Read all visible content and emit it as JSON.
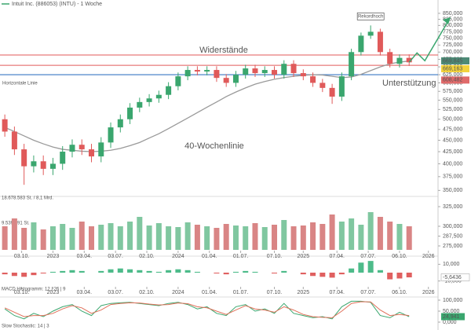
{
  "chart_data": [
    {
      "type": "candlestick",
      "title": "Intuit Inc. (886053) (INTU) - 1 Woche",
      "x": [
        2,
        6,
        10,
        14,
        18,
        22,
        26,
        30,
        34,
        38,
        42,
        46,
        50,
        54,
        58,
        62,
        66,
        70,
        74,
        78,
        82,
        86,
        90,
        94,
        98,
        102,
        106,
        110,
        114,
        118,
        122,
        126,
        130,
        134,
        138,
        142,
        146,
        150,
        154,
        158,
        162,
        166,
        170
      ],
      "open": [
        500,
        470,
        430,
        395,
        405,
        390,
        400,
        425,
        440,
        430,
        415,
        445,
        480,
        500,
        530,
        545,
        555,
        565,
        590,
        620,
        640,
        635,
        640,
        615,
        600,
        625,
        645,
        630,
        640,
        625,
        660,
        630,
        620,
        600,
        585,
        560,
        620,
        700,
        760,
        775,
        700,
        660,
        680
      ],
      "high": [
        512,
        482,
        442,
        417,
        417,
        412,
        437,
        452,
        452,
        442,
        457,
        492,
        512,
        542,
        557,
        567,
        577,
        602,
        632,
        652,
        652,
        652,
        652,
        627,
        637,
        657,
        657,
        652,
        652,
        672,
        672,
        642,
        632,
        612,
        597,
        632,
        712,
        772,
        800,
        787,
        712,
        692,
        692
      ],
      "low": [
        458,
        418,
        360,
        383,
        378,
        378,
        388,
        413,
        418,
        403,
        403,
        433,
        468,
        488,
        518,
        533,
        543,
        553,
        578,
        608,
        623,
        623,
        603,
        588,
        588,
        613,
        618,
        618,
        613,
        613,
        618,
        608,
        588,
        573,
        540,
        548,
        608,
        688,
        748,
        688,
        648,
        648,
        653
      ],
      "close": [
        470,
        430,
        395,
        405,
        390,
        400,
        425,
        440,
        430,
        415,
        445,
        480,
        500,
        530,
        545,
        555,
        565,
        590,
        620,
        640,
        635,
        640,
        615,
        600,
        625,
        645,
        630,
        640,
        625,
        660,
        630,
        620,
        600,
        585,
        560,
        620,
        700,
        760,
        775,
        700,
        660,
        680,
        665
      ],
      "up_color": "#3aa66e",
      "down_color": "#e05a5a",
      "xlim": [
        0,
        182
      ],
      "ylim": [
        345,
        860
      ],
      "log_scale": true,
      "yticks": [
        {
          "value": 850,
          "label": "850,000"
        },
        {
          "value": 825,
          "label": "825,000"
        },
        {
          "value": 800,
          "label": "800,000"
        },
        {
          "value": 775,
          "label": "775,000"
        },
        {
          "value": 750,
          "label": "750,000"
        },
        {
          "value": 725,
          "label": "725,000"
        },
        {
          "value": 700,
          "label": "700,000"
        },
        {
          "value": 675,
          "label": "675,000"
        },
        {
          "value": 650,
          "label": "650,000"
        },
        {
          "value": 625,
          "label": "625,000"
        },
        {
          "value": 600,
          "label": "600,000"
        },
        {
          "value": 575,
          "label": "575,000"
        },
        {
          "value": 550,
          "label": "550,000"
        },
        {
          "value": 525,
          "label": "525,000"
        },
        {
          "value": 500,
          "label": "500,000"
        },
        {
          "value": 475,
          "label": "475,000"
        },
        {
          "value": 450,
          "label": "450,000"
        },
        {
          "value": 425,
          "label": "425,000"
        },
        {
          "value": 400,
          "label": "400,000"
        },
        {
          "value": 375,
          "label": "375,000"
        },
        {
          "value": 350,
          "label": "350,000"
        }
      ],
      "moving_average": {
        "name": "40-Wochenlinie",
        "color": "#9a9a9a",
        "values": [
          480,
          470,
          460,
          450,
          442,
          435,
          430,
          428,
          426,
          425,
          426,
          428,
          432,
          438,
          445,
          455,
          465,
          477,
          490,
          503,
          517,
          531,
          545,
          560,
          573,
          585,
          596,
          604,
          611,
          616,
          620,
          623,
          625,
          624,
          620,
          616,
          618,
          626,
          638,
          650,
          660,
          666,
          669
        ]
      },
      "resistance": {
        "label": "Widerstände",
        "values": [
          690,
          655
        ],
        "color": "#e05a5a"
      },
      "support": {
        "label": "Unterstützung",
        "value": 625,
        "color": "#3a78c4"
      },
      "horizontal_line_label": "Horizontale Linie",
      "annotation": {
        "label": "Rekordhoch",
        "x": 154,
        "y": 800
      },
      "price_labels": [
        {
          "value": 669.845,
          "label": "669,845",
          "color": "#4d8a76"
        },
        {
          "value": 669.163,
          "label": "669,163",
          "color": "#f2d23c"
        },
        {
          "value": 608.482,
          "label": "608,482",
          "color": "#e06a6a"
        }
      ]
    },
    {
      "type": "bar",
      "title": "18.678.583 St. / 8,1 Mrd.",
      "subtitle": "9.539.291 St.",
      "x": [
        2,
        6,
        10,
        14,
        18,
        22,
        26,
        30,
        34,
        38,
        42,
        46,
        50,
        54,
        58,
        62,
        66,
        70,
        74,
        78,
        82,
        86,
        90,
        94,
        98,
        102,
        106,
        110,
        114,
        118,
        122,
        126,
        130,
        134,
        138,
        142,
        146,
        150,
        154,
        158,
        162,
        166,
        170
      ],
      "values": [
        300,
        310,
        298,
        305,
        296,
        300,
        303,
        298,
        306,
        300,
        302,
        304,
        300,
        306,
        312,
        301,
        304,
        300,
        299,
        305,
        302,
        300,
        298,
        303,
        301,
        300,
        304,
        299,
        302,
        308,
        300,
        301,
        305,
        303,
        315,
        306,
        310,
        302,
        318,
        312,
        306,
        303,
        300
      ],
      "up_color": "#80c7a0",
      "down_color": "#d98585",
      "xlim": [
        0,
        182
      ],
      "ylim": [
        270,
        330
      ],
      "yticks": [
        {
          "value": 325,
          "label": "325,000"
        },
        {
          "value": 300,
          "label": "300,000"
        },
        {
          "value": 287.5,
          "label": "287,500"
        },
        {
          "value": 275,
          "label": "275,000"
        }
      ],
      "xticks": [
        {
          "value": 9,
          "label": "03.10."
        },
        {
          "value": 22,
          "label": "2023"
        },
        {
          "value": 35,
          "label": "03.04."
        },
        {
          "value": 48,
          "label": "03.07."
        },
        {
          "value": 61,
          "label": "02.10."
        },
        {
          "value": 74,
          "label": "2024"
        },
        {
          "value": 87,
          "label": "01.04."
        },
        {
          "value": 100,
          "label": "01.07."
        },
        {
          "value": 114,
          "label": "07.10."
        },
        {
          "value": 126,
          "label": "2025"
        },
        {
          "value": 140,
          "label": "07.04."
        },
        {
          "value": 153,
          "label": "07.07."
        },
        {
          "value": 166,
          "label": "06.10."
        },
        {
          "value": 178,
          "label": "2026"
        }
      ]
    },
    {
      "type": "histogram-bar",
      "title": "MACD Histogramm: 12 | 26 | 9",
      "x": [
        2,
        6,
        10,
        14,
        18,
        22,
        26,
        30,
        34,
        38,
        42,
        46,
        50,
        54,
        58,
        62,
        66,
        70,
        74,
        78,
        82,
        86,
        90,
        94,
        98,
        102,
        106,
        110,
        114,
        118,
        122,
        126,
        130,
        134,
        138,
        142,
        146,
        150,
        154,
        158,
        162,
        166,
        170
      ],
      "values": [
        -2,
        -4,
        -5,
        -3,
        -1,
        1,
        2,
        3,
        2,
        0,
        2,
        4,
        5,
        4,
        3,
        2,
        1,
        3,
        4,
        3,
        1,
        0,
        -1,
        -2,
        1,
        2,
        1,
        0,
        -1,
        2,
        0,
        -2,
        -4,
        -5,
        -6,
        -2,
        5,
        12,
        14,
        3,
        -8,
        -7,
        -5.6436
      ],
      "last_value_label": "-5,6436",
      "up_color": "#4dbb8a",
      "down_color": "#e06060",
      "xlim": [
        0,
        182
      ],
      "ylim": [
        -16,
        16
      ],
      "yticks": [
        {
          "value": 10,
          "label": "10,000"
        },
        {
          "value": -10,
          "label": "-10,000"
        }
      ],
      "xticks": [
        {
          "value": 9,
          "label": "03.10."
        },
        {
          "value": 22,
          "label": "2023"
        },
        {
          "value": 35,
          "label": "03.04."
        },
        {
          "value": 48,
          "label": "03.07."
        },
        {
          "value": 61,
          "label": "02.10."
        },
        {
          "value": 74,
          "label": "2024"
        },
        {
          "value": 87,
          "label": "01.04."
        },
        {
          "value": 100,
          "label": "01.07."
        },
        {
          "value": 114,
          "label": "07.10."
        },
        {
          "value": 126,
          "label": "2025"
        },
        {
          "value": 140,
          "label": "07.04."
        },
        {
          "value": 153,
          "label": "07.07."
        },
        {
          "value": 166,
          "label": "06.10."
        },
        {
          "value": 178,
          "label": "2026"
        }
      ]
    },
    {
      "type": "line",
      "title": "Slow Stochastic: 14 | 3",
      "x": [
        2,
        6,
        10,
        14,
        18,
        22,
        26,
        30,
        34,
        38,
        42,
        46,
        50,
        54,
        58,
        62,
        66,
        70,
        74,
        78,
        82,
        86,
        90,
        94,
        98,
        102,
        106,
        110,
        114,
        118,
        122,
        126,
        130,
        134,
        138,
        142,
        146,
        150,
        154,
        158,
        162,
        166,
        170
      ],
      "series": [
        {
          "color": "#3aa66e",
          "values": [
            60,
            30,
            15,
            40,
            25,
            50,
            70,
            80,
            50,
            30,
            75,
            85,
            88,
            90,
            85,
            80,
            75,
            85,
            90,
            80,
            60,
            70,
            40,
            30,
            70,
            80,
            50,
            60,
            40,
            85,
            40,
            30,
            20,
            25,
            15,
            70,
            95,
            95,
            90,
            30,
            20,
            45,
            24.941
          ]
        },
        {
          "color": "#e0705a",
          "values": [
            65,
            45,
            25,
            30,
            30,
            40,
            60,
            75,
            65,
            40,
            55,
            80,
            85,
            88,
            87,
            82,
            78,
            80,
            87,
            84,
            70,
            65,
            50,
            35,
            55,
            75,
            60,
            55,
            45,
            70,
            55,
            35,
            25,
            22,
            20,
            50,
            85,
            93,
            92,
            55,
            30,
            35,
            30
          ]
        }
      ],
      "last_value_label": "24,941",
      "xlim": [
        0,
        182
      ],
      "ylim": [
        0,
        100
      ],
      "yticks": [
        {
          "value": 100,
          "label": "100,000"
        },
        {
          "value": 50,
          "label": "50,000"
        },
        {
          "value": 0,
          "label": "0,000"
        }
      ]
    }
  ]
}
